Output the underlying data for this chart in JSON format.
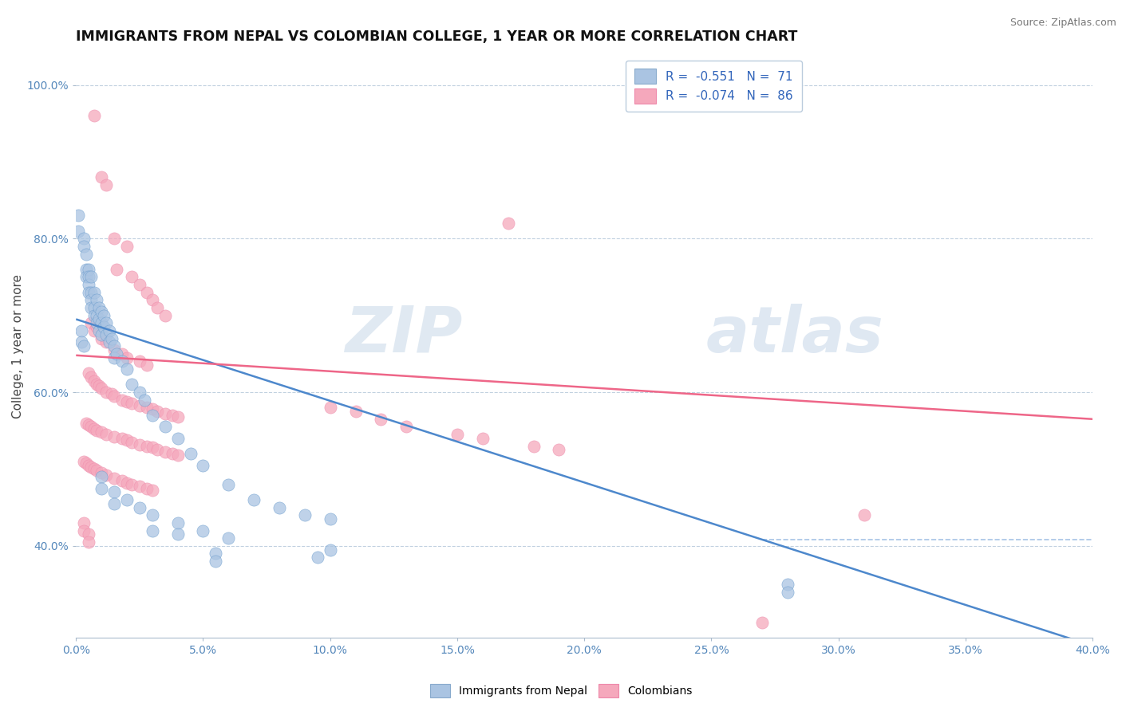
{
  "title": "IMMIGRANTS FROM NEPAL VS COLOMBIAN COLLEGE, 1 YEAR OR MORE CORRELATION CHART",
  "source": "Source: ZipAtlas.com",
  "ylabel": "College, 1 year or more",
  "xlim": [
    0.0,
    0.4
  ],
  "ylim": [
    0.28,
    1.04
  ],
  "xticks": [
    0.0,
    0.05,
    0.1,
    0.15,
    0.2,
    0.25,
    0.3,
    0.35,
    0.4
  ],
  "yticks": [
    0.4,
    0.6,
    0.8,
    1.0
  ],
  "nepal_color": "#aac4e2",
  "colombian_color": "#f5a8bc",
  "nepal_R": -0.551,
  "nepal_N": 71,
  "colombian_R": -0.074,
  "colombian_N": 86,
  "nepal_line_color": "#4d88cc",
  "colombian_line_color": "#ee6688",
  "watermark_zip": "ZIP",
  "watermark_atlas": "atlas",
  "nepal_line_x": [
    0.0,
    0.4
  ],
  "nepal_line_y": [
    0.695,
    0.27
  ],
  "colombian_line_x": [
    0.0,
    0.4
  ],
  "colombian_line_y": [
    0.648,
    0.565
  ],
  "nepal_scatter": [
    [
      0.001,
      0.83
    ],
    [
      0.001,
      0.81
    ],
    [
      0.003,
      0.8
    ],
    [
      0.003,
      0.79
    ],
    [
      0.004,
      0.78
    ],
    [
      0.004,
      0.76
    ],
    [
      0.004,
      0.75
    ],
    [
      0.005,
      0.76
    ],
    [
      0.005,
      0.75
    ],
    [
      0.005,
      0.74
    ],
    [
      0.005,
      0.73
    ],
    [
      0.006,
      0.75
    ],
    [
      0.006,
      0.73
    ],
    [
      0.006,
      0.72
    ],
    [
      0.006,
      0.71
    ],
    [
      0.007,
      0.73
    ],
    [
      0.007,
      0.71
    ],
    [
      0.007,
      0.7
    ],
    [
      0.008,
      0.72
    ],
    [
      0.008,
      0.7
    ],
    [
      0.008,
      0.69
    ],
    [
      0.009,
      0.71
    ],
    [
      0.009,
      0.695
    ],
    [
      0.009,
      0.68
    ],
    [
      0.01,
      0.705
    ],
    [
      0.01,
      0.69
    ],
    [
      0.01,
      0.675
    ],
    [
      0.011,
      0.7
    ],
    [
      0.011,
      0.685
    ],
    [
      0.012,
      0.69
    ],
    [
      0.012,
      0.675
    ],
    [
      0.013,
      0.68
    ],
    [
      0.013,
      0.665
    ],
    [
      0.014,
      0.67
    ],
    [
      0.015,
      0.66
    ],
    [
      0.015,
      0.645
    ],
    [
      0.016,
      0.65
    ],
    [
      0.018,
      0.64
    ],
    [
      0.02,
      0.63
    ],
    [
      0.022,
      0.61
    ],
    [
      0.025,
      0.6
    ],
    [
      0.027,
      0.59
    ],
    [
      0.03,
      0.57
    ],
    [
      0.035,
      0.555
    ],
    [
      0.04,
      0.54
    ],
    [
      0.045,
      0.52
    ],
    [
      0.05,
      0.505
    ],
    [
      0.06,
      0.48
    ],
    [
      0.07,
      0.46
    ],
    [
      0.08,
      0.45
    ],
    [
      0.09,
      0.44
    ],
    [
      0.1,
      0.435
    ],
    [
      0.03,
      0.44
    ],
    [
      0.03,
      0.42
    ],
    [
      0.04,
      0.43
    ],
    [
      0.04,
      0.415
    ],
    [
      0.05,
      0.42
    ],
    [
      0.06,
      0.41
    ],
    [
      0.01,
      0.49
    ],
    [
      0.01,
      0.475
    ],
    [
      0.015,
      0.47
    ],
    [
      0.015,
      0.455
    ],
    [
      0.02,
      0.46
    ],
    [
      0.025,
      0.45
    ],
    [
      0.002,
      0.68
    ],
    [
      0.002,
      0.665
    ],
    [
      0.003,
      0.66
    ],
    [
      0.1,
      0.395
    ],
    [
      0.095,
      0.385
    ],
    [
      0.055,
      0.39
    ],
    [
      0.055,
      0.38
    ],
    [
      0.28,
      0.35
    ],
    [
      0.28,
      0.34
    ]
  ],
  "colombian_scatter": [
    [
      0.007,
      0.96
    ],
    [
      0.01,
      0.88
    ],
    [
      0.012,
      0.87
    ],
    [
      0.015,
      0.8
    ],
    [
      0.02,
      0.79
    ],
    [
      0.016,
      0.76
    ],
    [
      0.022,
      0.75
    ],
    [
      0.025,
      0.74
    ],
    [
      0.028,
      0.73
    ],
    [
      0.03,
      0.72
    ],
    [
      0.032,
      0.71
    ],
    [
      0.035,
      0.7
    ],
    [
      0.006,
      0.69
    ],
    [
      0.007,
      0.68
    ],
    [
      0.008,
      0.685
    ],
    [
      0.01,
      0.67
    ],
    [
      0.012,
      0.665
    ],
    [
      0.015,
      0.655
    ],
    [
      0.018,
      0.65
    ],
    [
      0.02,
      0.645
    ],
    [
      0.025,
      0.64
    ],
    [
      0.028,
      0.635
    ],
    [
      0.005,
      0.625
    ],
    [
      0.006,
      0.62
    ],
    [
      0.007,
      0.615
    ],
    [
      0.008,
      0.61
    ],
    [
      0.009,
      0.608
    ],
    [
      0.01,
      0.605
    ],
    [
      0.012,
      0.6
    ],
    [
      0.014,
      0.598
    ],
    [
      0.015,
      0.595
    ],
    [
      0.018,
      0.59
    ],
    [
      0.02,
      0.588
    ],
    [
      0.022,
      0.585
    ],
    [
      0.025,
      0.582
    ],
    [
      0.028,
      0.58
    ],
    [
      0.03,
      0.578
    ],
    [
      0.032,
      0.575
    ],
    [
      0.035,
      0.572
    ],
    [
      0.038,
      0.57
    ],
    [
      0.04,
      0.568
    ],
    [
      0.004,
      0.56
    ],
    [
      0.005,
      0.558
    ],
    [
      0.006,
      0.555
    ],
    [
      0.007,
      0.552
    ],
    [
      0.008,
      0.55
    ],
    [
      0.01,
      0.548
    ],
    [
      0.012,
      0.545
    ],
    [
      0.015,
      0.542
    ],
    [
      0.018,
      0.54
    ],
    [
      0.02,
      0.538
    ],
    [
      0.022,
      0.535
    ],
    [
      0.025,
      0.532
    ],
    [
      0.028,
      0.53
    ],
    [
      0.03,
      0.528
    ],
    [
      0.032,
      0.525
    ],
    [
      0.035,
      0.522
    ],
    [
      0.038,
      0.52
    ],
    [
      0.04,
      0.518
    ],
    [
      0.003,
      0.51
    ],
    [
      0.004,
      0.508
    ],
    [
      0.005,
      0.505
    ],
    [
      0.006,
      0.502
    ],
    [
      0.007,
      0.5
    ],
    [
      0.008,
      0.498
    ],
    [
      0.01,
      0.495
    ],
    [
      0.012,
      0.492
    ],
    [
      0.015,
      0.488
    ],
    [
      0.018,
      0.485
    ],
    [
      0.02,
      0.482
    ],
    [
      0.022,
      0.48
    ],
    [
      0.025,
      0.478
    ],
    [
      0.028,
      0.475
    ],
    [
      0.03,
      0.472
    ],
    [
      0.1,
      0.58
    ],
    [
      0.11,
      0.575
    ],
    [
      0.12,
      0.565
    ],
    [
      0.13,
      0.555
    ],
    [
      0.15,
      0.545
    ],
    [
      0.16,
      0.54
    ],
    [
      0.18,
      0.53
    ],
    [
      0.19,
      0.525
    ],
    [
      0.27,
      0.3
    ],
    [
      0.31,
      0.44
    ],
    [
      0.003,
      0.43
    ],
    [
      0.003,
      0.42
    ],
    [
      0.005,
      0.415
    ],
    [
      0.005,
      0.405
    ],
    [
      0.17,
      0.82
    ]
  ]
}
